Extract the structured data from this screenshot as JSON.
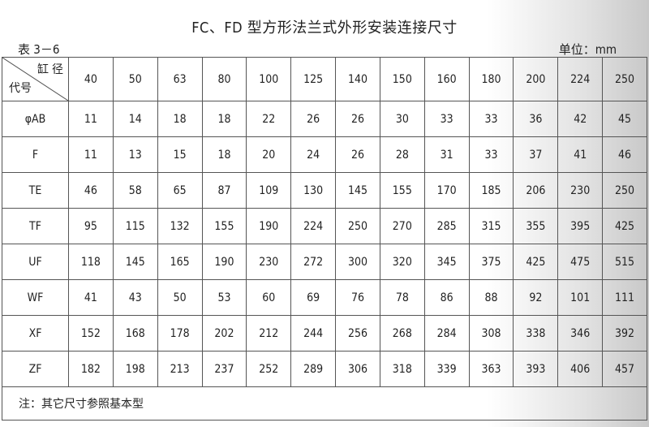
{
  "title": "FC、FD 型方形法兰式外形安装连接尺寸",
  "table_label": "表 3－6",
  "unit": "单位：mm",
  "header": {
    "top_right": "缸 径",
    "bottom_left": "代号"
  },
  "bores": [
    "40",
    "50",
    "63",
    "80",
    "100",
    "125",
    "140",
    "150",
    "160",
    "180",
    "200",
    "224",
    "250"
  ],
  "rows": [
    {
      "code": "φAB",
      "values": [
        "11",
        "14",
        "18",
        "18",
        "22",
        "26",
        "26",
        "30",
        "33",
        "33",
        "36",
        "42",
        "45"
      ]
    },
    {
      "code": "F",
      "values": [
        "11",
        "13",
        "15",
        "18",
        "20",
        "24",
        "26",
        "28",
        "31",
        "33",
        "37",
        "41",
        "46"
      ]
    },
    {
      "code": "TE",
      "values": [
        "46",
        "58",
        "65",
        "87",
        "109",
        "130",
        "145",
        "155",
        "170",
        "185",
        "206",
        "230",
        "250"
      ]
    },
    {
      "code": "TF",
      "values": [
        "95",
        "115",
        "132",
        "155",
        "190",
        "224",
        "250",
        "270",
        "285",
        "315",
        "355",
        "395",
        "425"
      ]
    },
    {
      "code": "UF",
      "values": [
        "118",
        "145",
        "165",
        "190",
        "230",
        "272",
        "300",
        "320",
        "345",
        "375",
        "425",
        "475",
        "515"
      ]
    },
    {
      "code": "WF",
      "values": [
        "41",
        "43",
        "50",
        "53",
        "60",
        "69",
        "76",
        "78",
        "86",
        "88",
        "92",
        "101",
        "111"
      ]
    },
    {
      "code": "XF",
      "values": [
        "152",
        "168",
        "178",
        "202",
        "212",
        "244",
        "256",
        "268",
        "284",
        "308",
        "338",
        "346",
        "392"
      ]
    },
    {
      "code": "ZF",
      "values": [
        "182",
        "198",
        "213",
        "237",
        "252",
        "289",
        "306",
        "318",
        "339",
        "363",
        "393",
        "406",
        "457"
      ]
    }
  ],
  "note": "注：其它尺寸参照基本型"
}
